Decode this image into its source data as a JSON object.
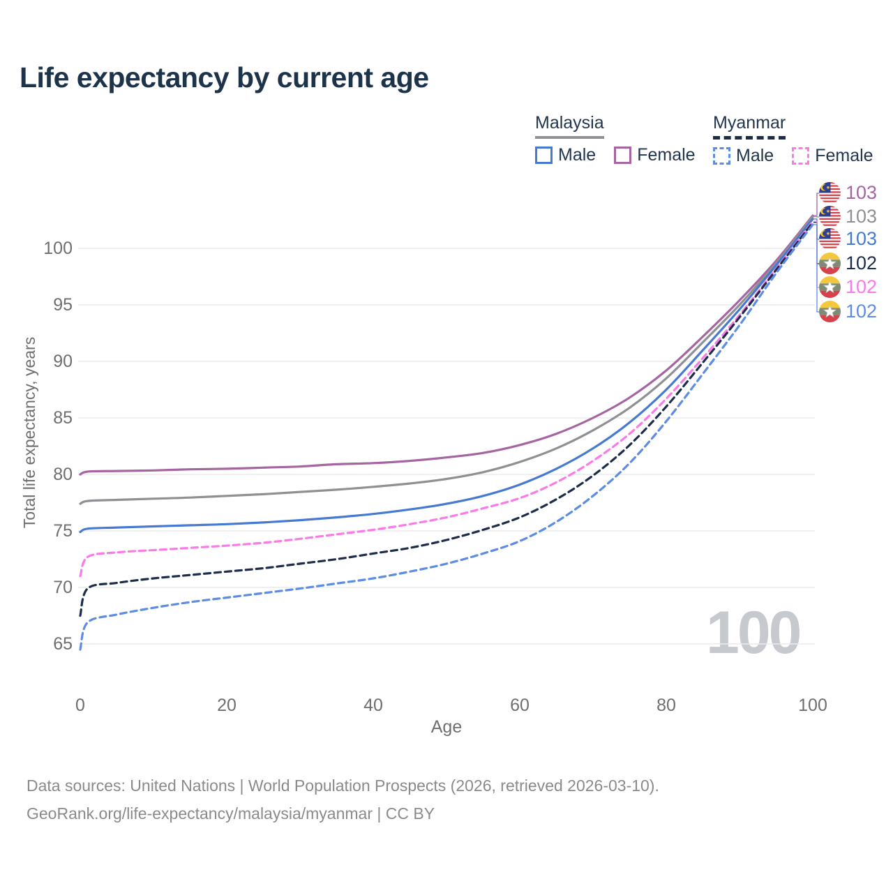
{
  "title": "Life expectancy by current age",
  "watermark": "100",
  "colors": {
    "title_text": "#1d3349",
    "legend_text": "#22354f",
    "tick_text": "#6e6e6e",
    "axis_title_text": "#6e6e6e",
    "footer_text": "#8a8a8a",
    "grid": "#ececec",
    "watermark": "#c6c9cd"
  },
  "legend": {
    "groups": [
      {
        "name": "Malaysia",
        "line_style": "solid",
        "line_color": "#8f9093",
        "items": [
          {
            "label": "Male",
            "color": "#4679d2",
            "dash": false
          },
          {
            "label": "Female",
            "color": "#a565a1",
            "dash": false
          }
        ]
      },
      {
        "name": "Myanmar",
        "line_style": "dashed",
        "line_color": "#1d2c4a",
        "items": [
          {
            "label": "Male",
            "color": "#5c8ce4",
            "dash": true
          },
          {
            "label": "Female",
            "color": "#fa7ae6",
            "dash": true
          }
        ]
      }
    ]
  },
  "chart_data": {
    "type": "line",
    "xlabel": "Age",
    "ylabel": "Total life expectancy, years",
    "xticks": [
      0,
      20,
      40,
      60,
      80,
      100
    ],
    "yticks": [
      65,
      70,
      75,
      80,
      85,
      90,
      95,
      100
    ],
    "xlim": [
      0,
      100
    ],
    "ylim": [
      63,
      104
    ],
    "grid": true,
    "x": [
      0,
      1,
      5,
      10,
      15,
      20,
      25,
      30,
      35,
      40,
      45,
      50,
      55,
      60,
      65,
      70,
      75,
      80,
      85,
      90,
      95,
      100
    ],
    "series": [
      {
        "name": "Malaysia Female",
        "key": "malaysia-female",
        "color": "#a565a1",
        "dash": false,
        "values": [
          80.0,
          80.25,
          80.3,
          80.35,
          80.45,
          80.5,
          80.6,
          80.7,
          80.9,
          81.0,
          81.2,
          81.5,
          81.9,
          82.6,
          83.6,
          85.0,
          86.8,
          89.2,
          92.2,
          95.4,
          98.9,
          102.9
        ]
      },
      {
        "name": "Malaysia",
        "key": "malaysia-total",
        "color": "#8f9093",
        "dash": false,
        "values": [
          77.4,
          77.65,
          77.75,
          77.85,
          77.95,
          78.1,
          78.25,
          78.45,
          78.65,
          78.9,
          79.2,
          79.6,
          80.2,
          81.1,
          82.3,
          83.9,
          85.9,
          88.5,
          91.7,
          95.0,
          98.7,
          102.8
        ]
      },
      {
        "name": "Malaysia Male",
        "key": "malaysia-male",
        "color": "#4679d2",
        "dash": false,
        "values": [
          74.9,
          75.2,
          75.3,
          75.4,
          75.5,
          75.6,
          75.75,
          75.95,
          76.2,
          76.5,
          76.9,
          77.4,
          78.1,
          79.1,
          80.5,
          82.3,
          84.6,
          87.5,
          91.0,
          94.6,
          98.5,
          102.6
        ]
      },
      {
        "name": "Myanmar Female",
        "key": "myanmar-female",
        "color": "#fa7ae6",
        "dash": true,
        "values": [
          71.0,
          72.7,
          73.1,
          73.3,
          73.5,
          73.7,
          73.95,
          74.3,
          74.7,
          75.1,
          75.6,
          76.2,
          77.0,
          77.9,
          79.3,
          81.2,
          83.6,
          86.7,
          90.3,
          94.1,
          98.2,
          102.4
        ]
      },
      {
        "name": "Myanmar",
        "key": "myanmar-total",
        "color": "#1d2c4a",
        "dash": true,
        "values": [
          67.5,
          69.9,
          70.4,
          70.8,
          71.1,
          71.4,
          71.7,
          72.1,
          72.5,
          73.0,
          73.5,
          74.2,
          75.1,
          76.2,
          77.8,
          79.9,
          82.6,
          86.0,
          89.9,
          93.9,
          98.1,
          102.3
        ]
      },
      {
        "name": "Myanmar Male",
        "key": "myanmar-male",
        "color": "#5c8ce4",
        "dash": true,
        "values": [
          64.5,
          66.9,
          67.6,
          68.2,
          68.7,
          69.1,
          69.5,
          69.9,
          70.35,
          70.8,
          71.4,
          72.1,
          73.0,
          74.1,
          75.8,
          78.1,
          81.0,
          84.7,
          88.9,
          93.2,
          97.8,
          102.1
        ]
      }
    ],
    "end_labels": [
      {
        "series": 0,
        "flag": "malaysia",
        "value": "103"
      },
      {
        "series": 1,
        "flag": "malaysia",
        "value": "103"
      },
      {
        "series": 2,
        "flag": "malaysia",
        "value": "103"
      },
      {
        "series": 4,
        "flag": "myanmar",
        "value": "102"
      },
      {
        "series": 3,
        "flag": "myanmar",
        "value": "102"
      },
      {
        "series": 5,
        "flag": "myanmar",
        "value": "102"
      }
    ]
  },
  "footer": {
    "line1": "Data sources: United Nations | World Population Prospects (2026, retrieved 2026-03-10).",
    "line2": "GeoRank.org/life-expectancy/malaysia/myanmar | CC BY"
  }
}
